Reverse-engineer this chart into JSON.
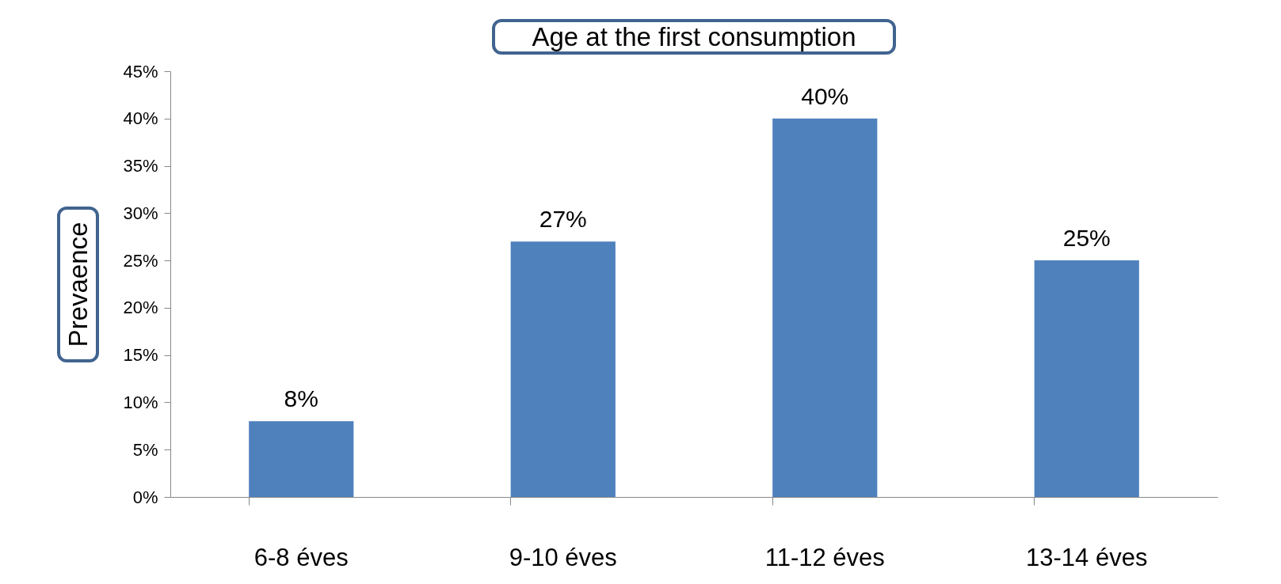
{
  "chart_data": {
    "type": "bar",
    "title": "Age at the first consumption",
    "ylabel": "Prevaence",
    "categories": [
      "6-8 éves",
      "9-10 éves",
      "11-12 éves",
      "13-14 éves"
    ],
    "values": [
      8,
      27,
      40,
      25
    ],
    "value_labels": [
      "8%",
      "27%",
      "40%",
      "25%"
    ],
    "color": "#4f81bd",
    "ylim": [
      0,
      45
    ],
    "yticks": [
      {
        "value": 0,
        "label": "0%"
      },
      {
        "value": 5,
        "label": "5%"
      },
      {
        "value": 10,
        "label": "10%"
      },
      {
        "value": 15,
        "label": "15%"
      },
      {
        "value": 20,
        "label": "20%"
      },
      {
        "value": 25,
        "label": "25%"
      },
      {
        "value": 30,
        "label": "30%"
      },
      {
        "value": 35,
        "label": "35%"
      },
      {
        "value": 40,
        "label": "40%"
      },
      {
        "value": 45,
        "label": "45%"
      }
    ],
    "grid": false
  }
}
